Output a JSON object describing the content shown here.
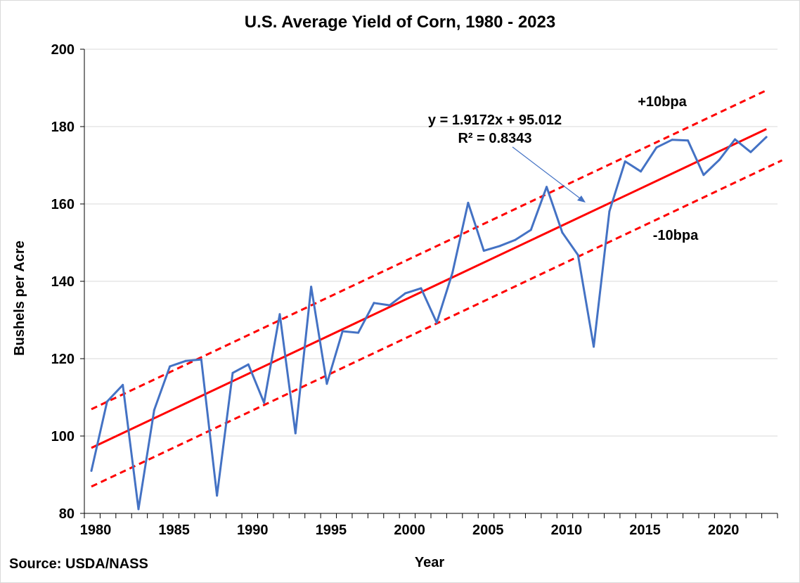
{
  "chart_data": {
    "type": "line",
    "title": "U.S. Average Yield of Corn, 1980 - 2023",
    "xlabel": "Year",
    "ylabel": "Bushels per Acre",
    "xlim": [
      1980,
      2024
    ],
    "ylim": [
      80,
      200
    ],
    "x_ticks": [
      1980,
      1985,
      1990,
      1995,
      2000,
      2005,
      2010,
      2015,
      2020
    ],
    "y_ticks": [
      80,
      100,
      120,
      140,
      160,
      180,
      200
    ],
    "grid": "horizontal",
    "series": [
      {
        "color": "#4472C4",
        "x": [
          1980,
          1981,
          1982,
          1983,
          1984,
          1985,
          1986,
          1987,
          1988,
          1989,
          1990,
          1991,
          1992,
          1993,
          1994,
          1995,
          1996,
          1997,
          1998,
          1999,
          2000,
          2001,
          2002,
          2003,
          2004,
          2005,
          2006,
          2007,
          2008,
          2009,
          2010,
          2011,
          2012,
          2013,
          2014,
          2015,
          2016,
          2017,
          2018,
          2019,
          2020,
          2021,
          2022,
          2023
        ],
        "values": [
          91.0,
          108.9,
          113.2,
          81.1,
          106.7,
          118.0,
          119.4,
          119.8,
          84.6,
          116.3,
          118.5,
          108.6,
          131.5,
          100.7,
          138.6,
          113.5,
          127.1,
          126.7,
          134.4,
          133.8,
          136.9,
          138.2,
          129.3,
          142.2,
          160.3,
          147.9,
          149.1,
          150.7,
          153.3,
          164.4,
          152.6,
          146.8,
          123.1,
          158.1,
          171.0,
          168.4,
          174.6,
          176.6,
          176.4,
          167.5,
          171.4,
          176.7,
          173.4,
          177.3
        ]
      }
    ],
    "trendline": {
      "color": "#FF0000",
      "slope": 1.9172,
      "intercept": 95.012,
      "x_range": [
        1980,
        2023
      ],
      "equation": "y = 1.9172x + 95.012",
      "r2": "R² = 0.8343"
    },
    "bands": [
      {
        "label": "+10bpa",
        "offset": 10,
        "style": "dashed",
        "color": "#FF0000"
      },
      {
        "label": "-10bpa",
        "offset": -10,
        "style": "dashed",
        "color": "#FF0000"
      }
    ],
    "source": "Source: USDA/NASS"
  }
}
